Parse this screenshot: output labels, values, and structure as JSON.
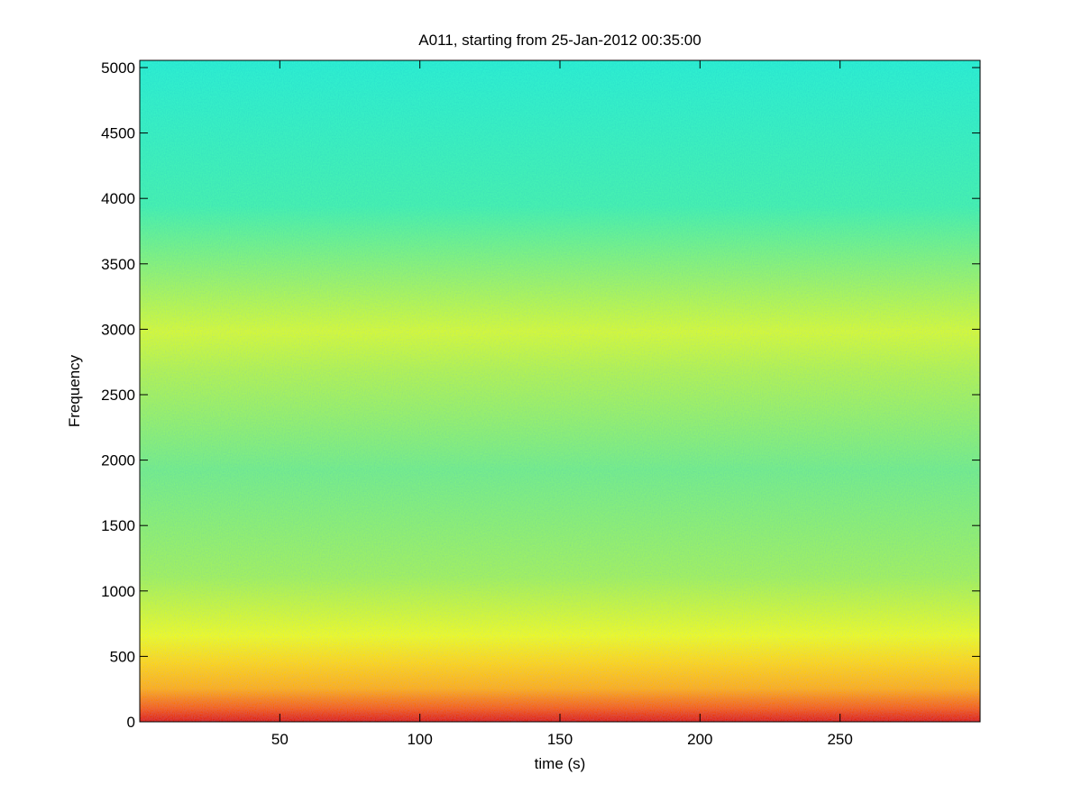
{
  "chart_data": {
    "type": "spectrogram",
    "title": "A011, starting from 25-Jan-2012 00:35:00",
    "x_label": "time (s)",
    "y_label": "Frequency",
    "xlim": [
      0,
      300
    ],
    "xticks": [
      50,
      100,
      150,
      200,
      250
    ],
    "ylim": [
      0,
      5055
    ],
    "yticks": [
      0,
      500,
      1000,
      1500,
      2000,
      2500,
      3000,
      3500,
      4000,
      4500,
      5000
    ]
  }
}
